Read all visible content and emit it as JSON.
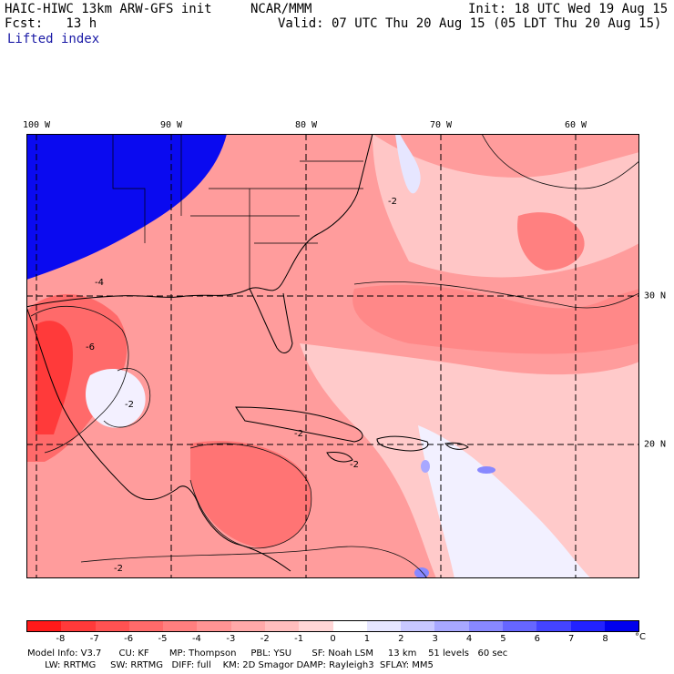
{
  "header": {
    "model_line": "HAIC-HIWC 13km ARW-GFS init",
    "org": "NCAR/MMM",
    "init": "Init: 18 UTC Wed 19 Aug 15",
    "fcst": "Fcst:   13 h",
    "valid": "Valid: 07 UTC Thu 20 Aug 15 (05 LDT Thu 20 Aug 15)",
    "field": "Lifted index"
  },
  "map": {
    "lon_labels": [
      "100 W",
      "90 W",
      "80 W",
      "70 W",
      "60 W"
    ],
    "lat_labels": [
      "30 N",
      "20 N"
    ],
    "contour_labels": [
      "-2",
      "-4",
      "-6",
      "-2",
      "-2",
      "-2",
      "-2"
    ]
  },
  "colorbar": {
    "ticks": [
      "-8",
      "-7",
      "-6",
      "-5",
      "-4",
      "-3",
      "-2",
      "-1",
      "0",
      "1",
      "2",
      "3",
      "4",
      "5",
      "6",
      "7",
      "8"
    ],
    "unit": "°C",
    "colors": [
      "#ff1a1a",
      "#ff3a3a",
      "#ff5252",
      "#ff6a6a",
      "#ff7f7f",
      "#ff9494",
      "#ffa9a9",
      "#ffbebe",
      "#ffd6d6",
      "#ffffff",
      "#e6e6ff",
      "#c8c8ff",
      "#a8a8ff",
      "#8888ff",
      "#6666ff",
      "#4444ff",
      "#2222ff",
      "#0000ee"
    ]
  },
  "footer": {
    "line1": "Model Info: V3.7      CU: KF       MP: Thompson     PBL: YSU       SF: Noah LSM     13 km    51 levels   60 sec",
    "line2": "      LW: RRTMG     SW: RRTMG   DIFF: full    KM: 2D Smagor DAMP: Rayleigh3  SFLAY: MM5"
  }
}
